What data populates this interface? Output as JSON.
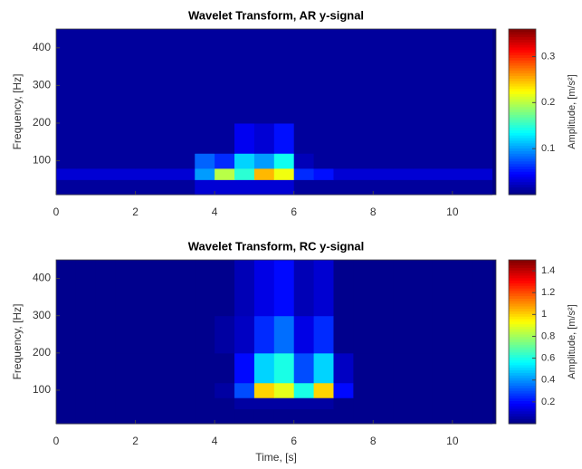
{
  "chart_data": [
    {
      "type": "heatmap",
      "title": "Wavelet Transform, AR y-signal",
      "ylabel": "Frequency, [Hz]",
      "colorbar_label": "Amplitude, [m/s²]",
      "colormap": "jet",
      "xbins": [
        0,
        0.5,
        1,
        1.5,
        2,
        2.5,
        3,
        3.5,
        4,
        4.5,
        5,
        5.5,
        6,
        6.5,
        7,
        7.5,
        8,
        8.5,
        9,
        9.5,
        10,
        10.5,
        11
      ],
      "ybins": [
        10,
        50,
        80,
        120,
        200,
        300,
        450
      ],
      "xlim": [
        0,
        11.1
      ],
      "ylim": [
        10,
        450
      ],
      "xticks": [
        0,
        2,
        4,
        6,
        8,
        10
      ],
      "yticks": [
        100,
        200,
        300,
        400
      ],
      "clim": [
        0,
        0.36
      ],
      "cticks": [
        0.1,
        0.2,
        0.3
      ],
      "values": [
        [
          0.01,
          0.01,
          0.01,
          0.01,
          0.01,
          0.01,
          0.01,
          0.03,
          0.03,
          0.03,
          0.03,
          0.03,
          0.01,
          0.01,
          0.01,
          0.01,
          0.01,
          0.01,
          0.01,
          0.01,
          0.01,
          0.01
        ],
        [
          0.03,
          0.03,
          0.03,
          0.03,
          0.03,
          0.03,
          0.03,
          0.1,
          0.2,
          0.15,
          0.25,
          0.22,
          0.06,
          0.05,
          0.03,
          0.03,
          0.03,
          0.03,
          0.03,
          0.03,
          0.03,
          0.03
        ],
        [
          0.01,
          0.01,
          0.01,
          0.01,
          0.01,
          0.01,
          0.01,
          0.08,
          0.06,
          0.12,
          0.1,
          0.14,
          0.02,
          0.01,
          0.01,
          0.01,
          0.01,
          0.01,
          0.01,
          0.01,
          0.01,
          0.01
        ],
        [
          0.01,
          0.01,
          0.01,
          0.01,
          0.01,
          0.01,
          0.01,
          0.01,
          0.01,
          0.04,
          0.03,
          0.05,
          0.01,
          0.01,
          0.01,
          0.01,
          0.01,
          0.01,
          0.01,
          0.01,
          0.01,
          0.01
        ],
        [
          0.01,
          0.01,
          0.01,
          0.01,
          0.01,
          0.01,
          0.01,
          0.01,
          0.01,
          0.01,
          0.01,
          0.01,
          0.01,
          0.01,
          0.01,
          0.01,
          0.01,
          0.01,
          0.01,
          0.01,
          0.01,
          0.01
        ],
        [
          0.01,
          0.01,
          0.01,
          0.01,
          0.01,
          0.01,
          0.01,
          0.01,
          0.01,
          0.01,
          0.01,
          0.01,
          0.01,
          0.01,
          0.01,
          0.01,
          0.01,
          0.01,
          0.01,
          0.01,
          0.01,
          0.01
        ]
      ]
    },
    {
      "type": "heatmap",
      "title": "Wavelet Transform, RC y-signal",
      "xlabel": "Time, [s]",
      "ylabel": "Frequency, [Hz]",
      "colorbar_label": "Amplitude, [m/s²]",
      "colormap": "jet",
      "xbins": [
        0,
        0.5,
        1,
        1.5,
        2,
        2.5,
        3,
        3.5,
        4,
        4.5,
        5,
        5.5,
        6,
        6.5,
        7,
        7.5,
        8,
        8.5,
        9,
        9.5,
        10,
        10.5,
        11
      ],
      "ybins": [
        10,
        50,
        80,
        120,
        200,
        300,
        450
      ],
      "xlim": [
        0,
        11.1
      ],
      "ylim": [
        10,
        450
      ],
      "xticks": [
        0,
        2,
        4,
        6,
        8,
        10
      ],
      "yticks": [
        100,
        200,
        300,
        400
      ],
      "clim": [
        0,
        1.5
      ],
      "cticks": [
        0.2,
        0.4,
        0.6,
        0.8,
        1,
        1.2,
        1.4
      ],
      "values": [
        [
          0.02,
          0.02,
          0.02,
          0.02,
          0.02,
          0.02,
          0.02,
          0.02,
          0.02,
          0.02,
          0.02,
          0.02,
          0.02,
          0.02,
          0.02,
          0.02,
          0.02,
          0.02,
          0.02,
          0.02,
          0.02,
          0.02
        ],
        [
          0.02,
          0.02,
          0.02,
          0.02,
          0.02,
          0.02,
          0.02,
          0.02,
          0.02,
          0.05,
          0.05,
          0.05,
          0.05,
          0.05,
          0.02,
          0.02,
          0.02,
          0.02,
          0.02,
          0.02,
          0.02,
          0.02
        ],
        [
          0.02,
          0.02,
          0.02,
          0.02,
          0.02,
          0.02,
          0.02,
          0.02,
          0.05,
          0.3,
          1.0,
          0.9,
          0.6,
          1.0,
          0.2,
          0.02,
          0.02,
          0.02,
          0.02,
          0.02,
          0.02,
          0.02
        ],
        [
          0.02,
          0.02,
          0.02,
          0.02,
          0.02,
          0.02,
          0.02,
          0.02,
          0.02,
          0.2,
          0.5,
          0.6,
          0.3,
          0.5,
          0.1,
          0.02,
          0.02,
          0.02,
          0.02,
          0.02,
          0.02,
          0.02
        ],
        [
          0.02,
          0.02,
          0.02,
          0.02,
          0.02,
          0.02,
          0.02,
          0.02,
          0.05,
          0.1,
          0.25,
          0.35,
          0.15,
          0.25,
          0.02,
          0.02,
          0.02,
          0.02,
          0.02,
          0.02,
          0.02,
          0.02
        ],
        [
          0.02,
          0.02,
          0.02,
          0.02,
          0.02,
          0.02,
          0.02,
          0.02,
          0.02,
          0.08,
          0.15,
          0.2,
          0.08,
          0.12,
          0.02,
          0.02,
          0.02,
          0.02,
          0.02,
          0.02,
          0.02,
          0.02
        ]
      ]
    }
  ]
}
